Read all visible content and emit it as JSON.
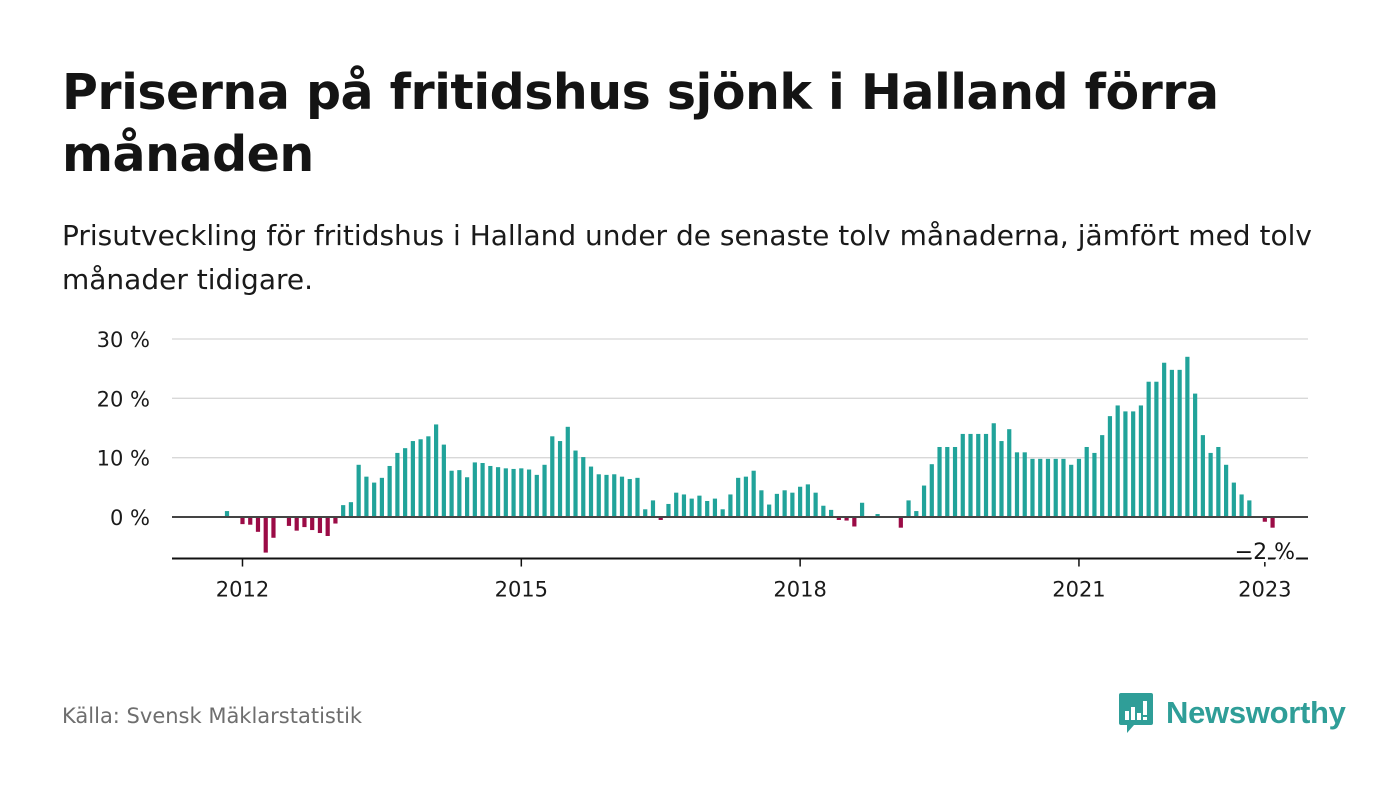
{
  "title": "Priserna på fritidshus sjönk i Halland förra månaden",
  "subtitle": "Prisutveckling för fritidshus i Halland under de senaste tolv månaderna, jämfört med tolv månader tidigare.",
  "source": "Källa: Svensk Mäklarstatistik",
  "brand": {
    "name": "Newsworthy",
    "icon": "newsworthy-logo-icon",
    "color": "#2f9e98"
  },
  "chart_data": {
    "type": "bar",
    "x_start": "2011-11",
    "x_frequency": "monthly",
    "x_ticks": [
      {
        "label": "2012",
        "month": "2012-01"
      },
      {
        "label": "2015",
        "month": "2015-01"
      },
      {
        "label": "2018",
        "month": "2018-01"
      },
      {
        "label": "2021",
        "month": "2021-01"
      },
      {
        "label": "2023",
        "month": "2023-01"
      }
    ],
    "y_ticks": [
      {
        "label": "30 %",
        "value": 30
      },
      {
        "label": "20 %",
        "value": 20
      },
      {
        "label": "10 %",
        "value": 10
      },
      {
        "label": "0 %",
        "value": 0
      }
    ],
    "ylim": [
      -7,
      30
    ],
    "grid": true,
    "colors": {
      "positive": "#21a39a",
      "negative": "#9b0b46",
      "gridline": "#d8d8d8",
      "zero_line": "#444444"
    },
    "annotation": {
      "label": "−2 %",
      "month": "2023-01"
    },
    "values": [
      1,
      0,
      -1.2,
      -1.3,
      -2.5,
      -6,
      -3.5,
      0,
      -1.5,
      -2.3,
      -1.7,
      -2.2,
      -2.7,
      -3.2,
      -1.1,
      2,
      2.5,
      8.8,
      6.8,
      5.8,
      6.6,
      8.6,
      10.8,
      11.6,
      12.8,
      13.1,
      13.6,
      15.6,
      12.2,
      7.8,
      7.9,
      6.7,
      9.2,
      9.1,
      8.6,
      8.4,
      8.2,
      8.1,
      8.2,
      8,
      7.1,
      8.8,
      13.6,
      12.8,
      15.2,
      11.2,
      10.1,
      8.5,
      7.2,
      7.1,
      7.2,
      6.8,
      6.4,
      6.6,
      1.3,
      2.8,
      -0.5,
      2.2,
      4.1,
      3.8,
      3.1,
      3.6,
      2.7,
      3.1,
      1.3,
      3.8,
      6.6,
      6.8,
      7.8,
      4.5,
      2.1,
      3.9,
      4.5,
      4.1,
      5.1,
      5.5,
      4.1,
      1.9,
      1.2,
      -0.5,
      -0.6,
      -1.6,
      2.4,
      0,
      0.5,
      0,
      0,
      -1.8,
      2.8,
      1,
      5.3,
      8.9,
      11.8,
      11.8,
      11.8,
      14,
      14,
      14,
      14,
      15.8,
      12.8,
      14.8,
      10.9,
      10.9,
      9.8,
      9.8,
      9.8,
      9.8,
      9.8,
      8.8,
      9.8,
      11.8,
      10.8,
      13.8,
      17,
      18.8,
      17.8,
      17.8,
      18.8,
      22.8,
      22.8,
      26,
      24.8,
      24.8,
      27,
      20.8,
      13.8,
      10.8,
      11.8,
      8.8,
      5.8,
      3.8,
      2.8,
      0,
      -0.8,
      -1.8
    ]
  }
}
